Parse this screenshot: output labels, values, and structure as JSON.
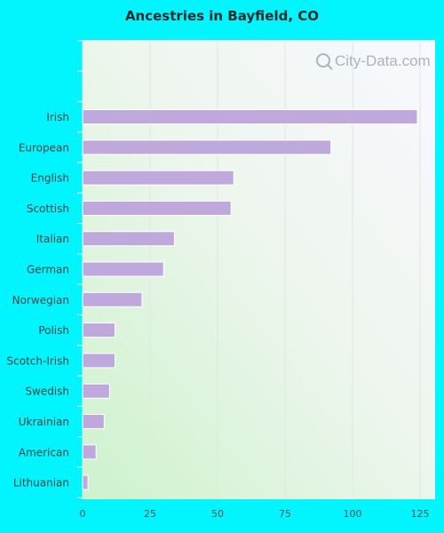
{
  "watermark": "City-Data.com",
  "colors": {
    "page_background": "#00f5ff",
    "bar": "#bfa8dc",
    "bar_stroke": "#ffffff"
  },
  "chart_data": {
    "type": "bar",
    "orientation": "horizontal",
    "title": "Ancestries in Bayfield, CO",
    "xlabel": "",
    "ylabel": "",
    "categories": [
      "Irish",
      "European",
      "English",
      "Scottish",
      "Italian",
      "German",
      "Norwegian",
      "Polish",
      "Scotch-Irish",
      "Swedish",
      "Ukrainian",
      "American",
      "Lithuanian"
    ],
    "values": [
      124,
      92,
      56,
      55,
      34,
      30,
      22,
      12,
      12,
      10,
      8,
      5,
      2
    ],
    "xlim": [
      0,
      130
    ],
    "xticks": [
      0,
      25,
      50,
      75,
      100,
      125
    ],
    "grid": true,
    "legend": "none"
  }
}
